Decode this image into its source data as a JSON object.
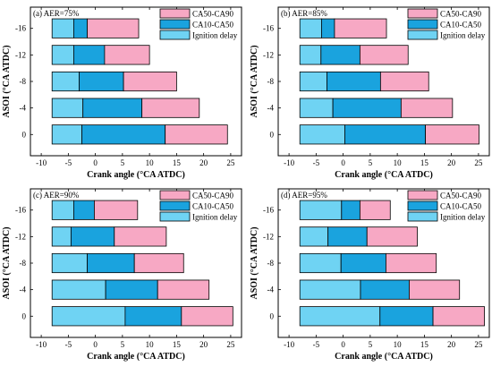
{
  "colors": {
    "ignition_delay": "#6fd3f3",
    "ca10_ca50": "#1aa3de",
    "ca50_ca90": "#f7a8c4",
    "edge": "#000000"
  },
  "chart_data": [
    {
      "type": "bar",
      "orientation": "horizontal-stacked",
      "title": "(a) AER=75%",
      "xlabel": "Crank angle (°CA ATDC)",
      "ylabel": "ASOI (°CA ATDC)",
      "xlim": [
        -12,
        27
      ],
      "xticks": [
        "-10",
        "-5",
        "0",
        "5",
        "10",
        "15",
        "20",
        "25"
      ],
      "categories": [
        "-16",
        "-12",
        "-8",
        "-4",
        "0"
      ],
      "legend": [
        "CA50-CA90",
        "CA10-CA50",
        "Ignition delay"
      ],
      "legend_position": "top-right",
      "series": [
        {
          "name": "Ignition delay",
          "start": [
            -8,
            -8,
            -8,
            -8,
            -8
          ],
          "end": [
            -4,
            -4,
            -3,
            -2.3,
            -2.5
          ]
        },
        {
          "name": "CA10-CA50",
          "start": [
            -4,
            -4,
            -3,
            -2.3,
            -2.5
          ],
          "end": [
            -1.5,
            1.7,
            5.2,
            8.6,
            12.9
          ]
        },
        {
          "name": "CA50-CA90",
          "start": [
            -1.5,
            1.7,
            5.2,
            8.6,
            12.9
          ],
          "end": [
            8,
            10,
            15,
            19.2,
            24.4
          ]
        }
      ]
    },
    {
      "type": "bar",
      "orientation": "horizontal-stacked",
      "title": "(b) AER=85%",
      "xlabel": "Crank angle (°CA ATDC)",
      "ylabel": "ASOI (°CA ATDC)",
      "xlim": [
        -12,
        27
      ],
      "xticks": [
        "-10",
        "-5",
        "0",
        "5",
        "10",
        "15",
        "20",
        "25"
      ],
      "categories": [
        "-16",
        "-12",
        "-8",
        "-4",
        "0"
      ],
      "legend": [
        "CA50-CA90",
        "CA10-CA50",
        "Ignition delay"
      ],
      "legend_position": "top-right",
      "series": [
        {
          "name": "Ignition delay",
          "start": [
            -8,
            -8,
            -8,
            -8,
            -8
          ],
          "end": [
            -4,
            -4.1,
            -3,
            -1.9,
            0.3
          ]
        },
        {
          "name": "CA10-CA50",
          "start": [
            -4,
            -4.1,
            -3,
            -1.9,
            0.3
          ],
          "end": [
            -1.6,
            3.1,
            6.9,
            10.7,
            15.2
          ]
        },
        {
          "name": "CA50-CA90",
          "start": [
            -1.6,
            3.1,
            6.9,
            10.7,
            15.2
          ],
          "end": [
            8,
            12,
            15.8,
            20.2,
            25.1
          ]
        }
      ]
    },
    {
      "type": "bar",
      "orientation": "horizontal-stacked",
      "title": "(c) AER=90%",
      "xlabel": "Crank angle (°CA ATDC)",
      "ylabel": "ASOI (°CA ATDC)",
      "xlim": [
        -12,
        27
      ],
      "xticks": [
        "-10",
        "-5",
        "0",
        "5",
        "10",
        "15",
        "20",
        "25"
      ],
      "categories": [
        "-16",
        "-12",
        "-8",
        "-4",
        "0"
      ],
      "legend": [
        "CA50-CA90",
        "CA10-CA50",
        "Ignition delay"
      ],
      "legend_position": "top-right",
      "series": [
        {
          "name": "Ignition delay",
          "start": [
            -8,
            -8,
            -8,
            -8,
            -8
          ],
          "end": [
            -4,
            -4.5,
            -1.5,
            1.9,
            5.5
          ]
        },
        {
          "name": "CA10-CA50",
          "start": [
            -4,
            -4.5,
            -1.5,
            1.9,
            5.5
          ],
          "end": [
            -0.2,
            3.5,
            7.2,
            11.5,
            15.9
          ]
        },
        {
          "name": "CA50-CA90",
          "start": [
            -0.2,
            3.5,
            7.2,
            11.5,
            15.9
          ],
          "end": [
            7.8,
            13.1,
            16.3,
            21,
            25.4
          ]
        }
      ]
    },
    {
      "type": "bar",
      "orientation": "horizontal-stacked",
      "title": "(d) AER=95%",
      "xlabel": "Crank angle (°CA ATDC)",
      "ylabel": "ASOI (°CA ATDC)",
      "xlim": [
        -12,
        27
      ],
      "xticks": [
        "-10",
        "-5",
        "0",
        "5",
        "10",
        "15",
        "20",
        "25"
      ],
      "categories": [
        "-16",
        "-12",
        "-8",
        "-4",
        "0"
      ],
      "legend": [
        "CA50-CA90",
        "CA10-CA50",
        "Ignition delay"
      ],
      "legend_position": "top-right",
      "series": [
        {
          "name": "Ignition delay",
          "start": [
            -8,
            -8,
            -8,
            -8,
            -8
          ],
          "end": [
            -0.3,
            -2.8,
            -0.4,
            3.2,
            6.8
          ]
        },
        {
          "name": "CA10-CA50",
          "start": [
            -0.3,
            -2.8,
            -0.4,
            3.2,
            6.8
          ],
          "end": [
            3.1,
            4.4,
            7.9,
            12.2,
            16.6
          ]
        },
        {
          "name": "CA50-CA90",
          "start": [
            3.1,
            4.4,
            7.9,
            12.2,
            16.6
          ],
          "end": [
            8.7,
            13.7,
            17.2,
            21.5,
            26.1
          ]
        }
      ]
    }
  ]
}
